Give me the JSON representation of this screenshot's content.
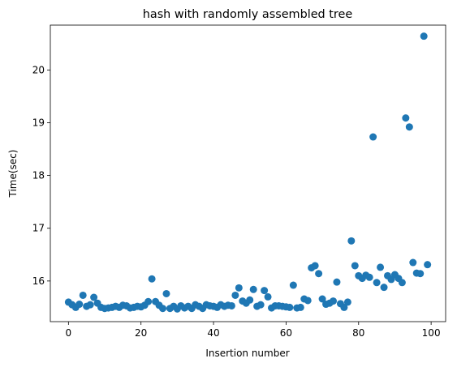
{
  "chart_data": {
    "type": "scatter",
    "title": "hash with randomly assembled tree",
    "xlabel": "Insertion number",
    "ylabel": "Time(sec)",
    "xlim": [
      -5,
      104
    ],
    "ylim": [
      15.23,
      20.85
    ],
    "xticks": [
      0,
      20,
      40,
      60,
      80,
      100
    ],
    "yticks": [
      16,
      17,
      18,
      19,
      20
    ],
    "grid": false,
    "color": "#1f77b4",
    "x": [
      0,
      1,
      2,
      3,
      4,
      5,
      6,
      7,
      8,
      9,
      10,
      11,
      12,
      13,
      14,
      15,
      16,
      17,
      18,
      19,
      20,
      21,
      22,
      23,
      24,
      25,
      26,
      27,
      28,
      29,
      30,
      31,
      32,
      33,
      34,
      35,
      36,
      37,
      38,
      39,
      40,
      41,
      42,
      43,
      44,
      45,
      46,
      47,
      48,
      49,
      50,
      51,
      52,
      53,
      54,
      55,
      56,
      57,
      58,
      59,
      60,
      61,
      62,
      63,
      64,
      65,
      66,
      67,
      68,
      69,
      70,
      71,
      72,
      73,
      74,
      75,
      76,
      77,
      78,
      79,
      80,
      81,
      82,
      83,
      84,
      85,
      86,
      87,
      88,
      89,
      90,
      91,
      92,
      93,
      94,
      95,
      96,
      97,
      98,
      99
    ],
    "y": [
      15.6,
      15.55,
      15.5,
      15.56,
      15.73,
      15.52,
      15.55,
      15.69,
      15.58,
      15.5,
      15.48,
      15.49,
      15.5,
      15.52,
      15.5,
      15.54,
      15.53,
      15.49,
      15.5,
      15.52,
      15.51,
      15.54,
      15.61,
      16.04,
      15.61,
      15.54,
      15.48,
      15.76,
      15.48,
      15.52,
      15.47,
      15.53,
      15.49,
      15.52,
      15.48,
      15.55,
      15.52,
      15.48,
      15.55,
      15.53,
      15.52,
      15.5,
      15.55,
      15.52,
      15.54,
      15.53,
      15.73,
      15.87,
      15.62,
      15.58,
      15.64,
      15.84,
      15.52,
      15.55,
      15.82,
      15.7,
      15.49,
      15.53,
      15.53,
      15.52,
      15.51,
      15.5,
      15.92,
      15.49,
      15.5,
      15.66,
      15.63,
      16.25,
      16.29,
      16.14,
      15.66,
      15.56,
      15.58,
      15.62,
      15.98,
      15.57,
      15.5,
      15.6,
      16.76,
      16.29,
      16.1,
      16.05,
      16.11,
      16.07,
      18.73,
      15.97,
      16.26,
      15.88,
      16.1,
      16.03,
      16.12,
      16.05,
      15.97,
      19.09,
      18.92,
      16.35,
      16.15,
      16.14,
      20.64,
      16.31
    ]
  }
}
